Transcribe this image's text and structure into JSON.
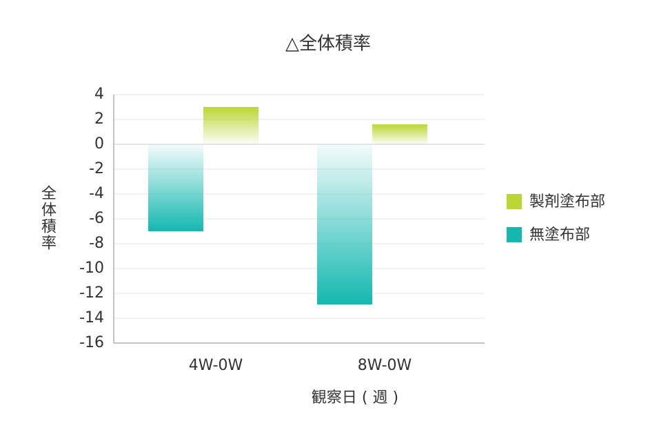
{
  "chart_data": {
    "type": "bar",
    "title": "△全体積率",
    "x_label": "観察日 ( 週 )",
    "y_label": "全体積率",
    "categories": [
      "4W-0W",
      "8W-0W"
    ],
    "series": [
      {
        "name": "製剤塗布部",
        "color": "#bcd633",
        "values": [
          3,
          1.6
        ]
      },
      {
        "name": "無塗布部",
        "color": "#14b8b0",
        "values": [
          -7,
          -12.9
        ]
      }
    ],
    "ylim": [
      -16,
      4
    ],
    "yticks": [
      4,
      2,
      0,
      -2,
      -4,
      -6,
      -8,
      -10,
      -12,
      -14,
      -16
    ],
    "grid": true,
    "legend": "right"
  }
}
